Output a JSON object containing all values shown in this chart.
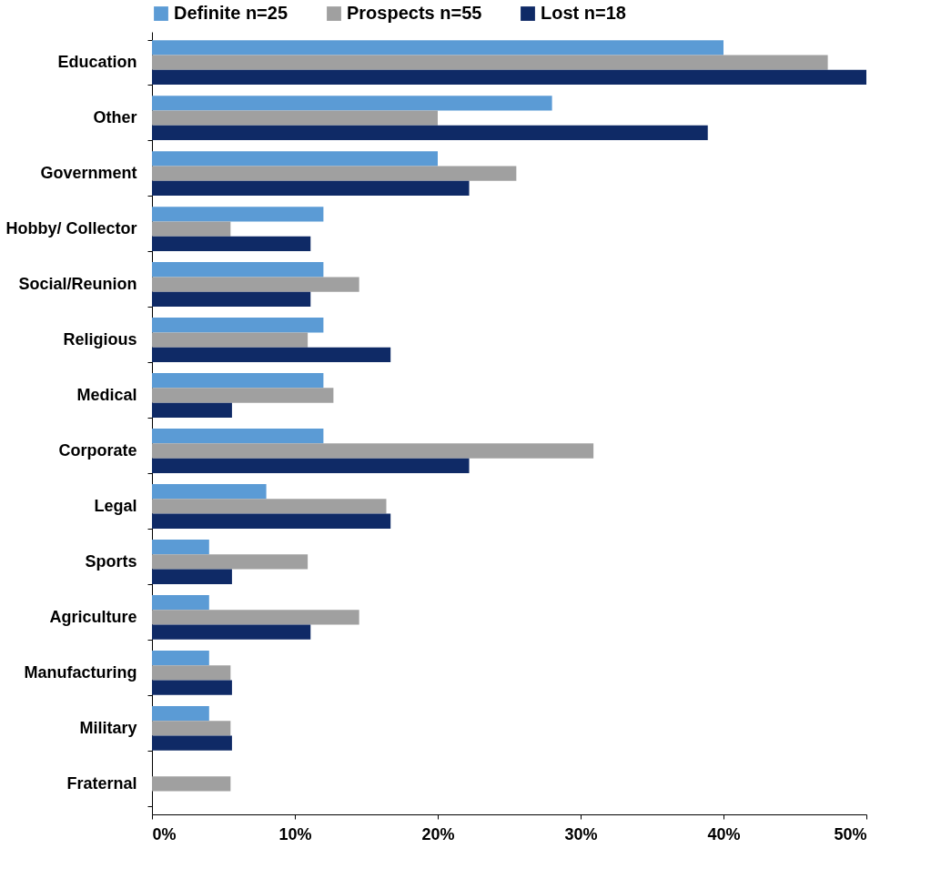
{
  "chart_data": {
    "type": "bar",
    "orientation": "horizontal",
    "legend": "top",
    "grid": false,
    "categories": [
      "Education",
      "Other",
      "Government",
      "Hobby/ Collector",
      "Social/Reunion",
      "Religious",
      "Medical",
      "Corporate",
      "Legal",
      "Sports",
      "Agriculture",
      "Manufacturing",
      "Military",
      "Fraternal"
    ],
    "series": [
      {
        "name": "Definite n=25",
        "color": "#5b9bd5",
        "values": [
          40,
          28,
          20,
          12,
          12,
          12,
          12,
          12,
          8,
          4,
          4,
          4,
          4,
          0
        ]
      },
      {
        "name": "Prospects n=55",
        "color": "#a0a0a0",
        "values": [
          47.3,
          20,
          25.5,
          5.5,
          14.5,
          10.9,
          12.7,
          30.9,
          16.4,
          10.9,
          14.5,
          5.5,
          5.5,
          5.5
        ]
      },
      {
        "name": "Lost n=18",
        "color": "#0f2a66",
        "values": [
          50,
          38.9,
          22.2,
          11.1,
          11.1,
          16.7,
          5.6,
          22.2,
          16.7,
          5.6,
          11.1,
          5.6,
          5.6,
          0
        ]
      }
    ],
    "xlim": [
      0,
      50
    ],
    "xticks": [
      {
        "value": 0,
        "label": "0%"
      },
      {
        "value": 10,
        "label": "10%"
      },
      {
        "value": 20,
        "label": "20%"
      },
      {
        "value": 30,
        "label": "30%"
      },
      {
        "value": 40,
        "label": "40%"
      },
      {
        "value": 50,
        "label": "50%"
      }
    ]
  }
}
